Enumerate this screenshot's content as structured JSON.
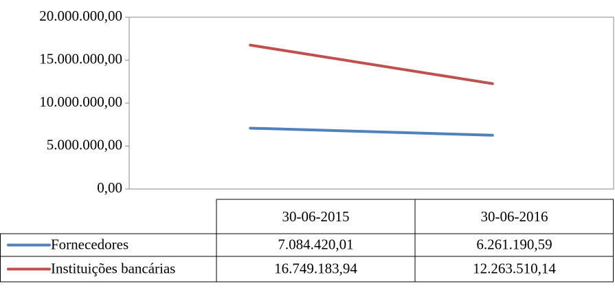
{
  "chart_data": {
    "type": "line",
    "categories": [
      "30-06-2015",
      "30-06-2016"
    ],
    "series": [
      {
        "name": "Fornecedores",
        "color": "#4f81bd",
        "values": [
          7084420.01,
          6261190.59
        ],
        "value_labels": [
          "7.084.420,01",
          "6.261.190,59"
        ]
      },
      {
        "name": "Instituições bancárias",
        "color": "#c0504d",
        "values": [
          16749183.94,
          12263510.14
        ],
        "value_labels": [
          "16.749.183,94",
          "12.263.510,14"
        ]
      }
    ],
    "ylim": [
      0,
      20000000
    ],
    "yticks": [
      {
        "value": 0,
        "label": "0,00"
      },
      {
        "value": 5000000,
        "label": "5.000.000,00"
      },
      {
        "value": 10000000,
        "label": "10.000.000,00"
      },
      {
        "value": 15000000,
        "label": "15.000.000,00"
      },
      {
        "value": 20000000,
        "label": "20.000.000,00"
      }
    ],
    "grid": false
  }
}
